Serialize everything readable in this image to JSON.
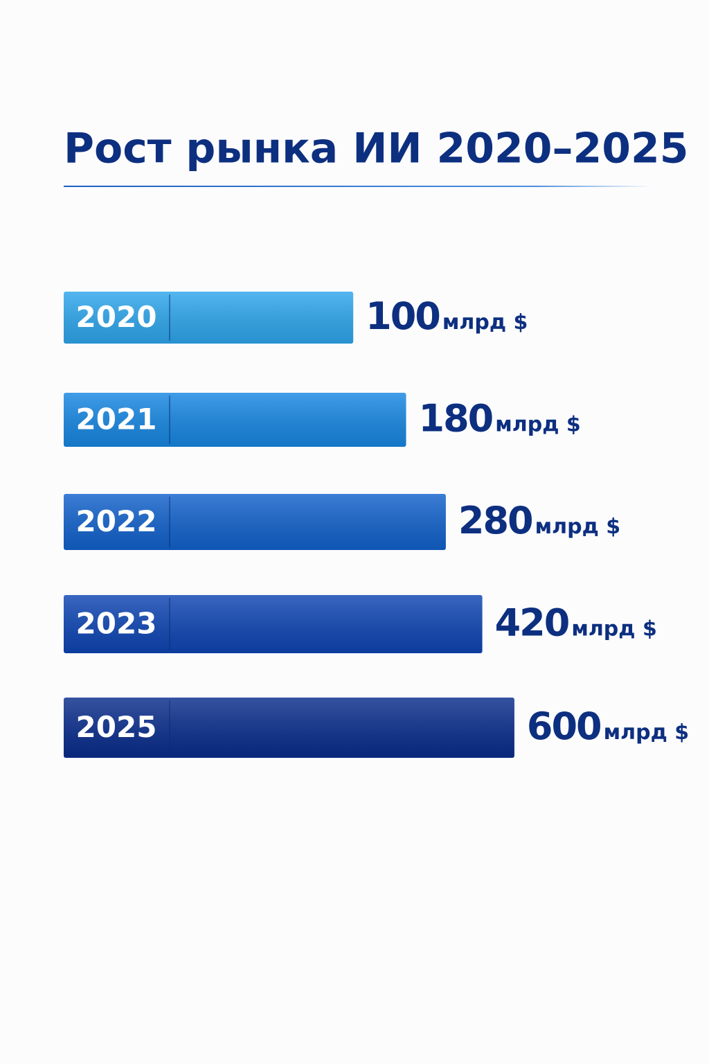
{
  "chart_data": {
    "type": "hbar",
    "title": "Рост рынка ИИ 2020–2025",
    "categories": [
      "2020",
      "2021",
      "2022",
      "2023",
      "2025"
    ],
    "values": [
      100,
      180,
      280,
      420,
      600
    ],
    "unit": "млрд $",
    "colors": [
      "#2ea6ec",
      "#1787e2",
      "#1262cc",
      "#0e45b3",
      "#0a2d8c"
    ],
    "log_scale": true,
    "xlim": [
      4,
      3000
    ]
  }
}
